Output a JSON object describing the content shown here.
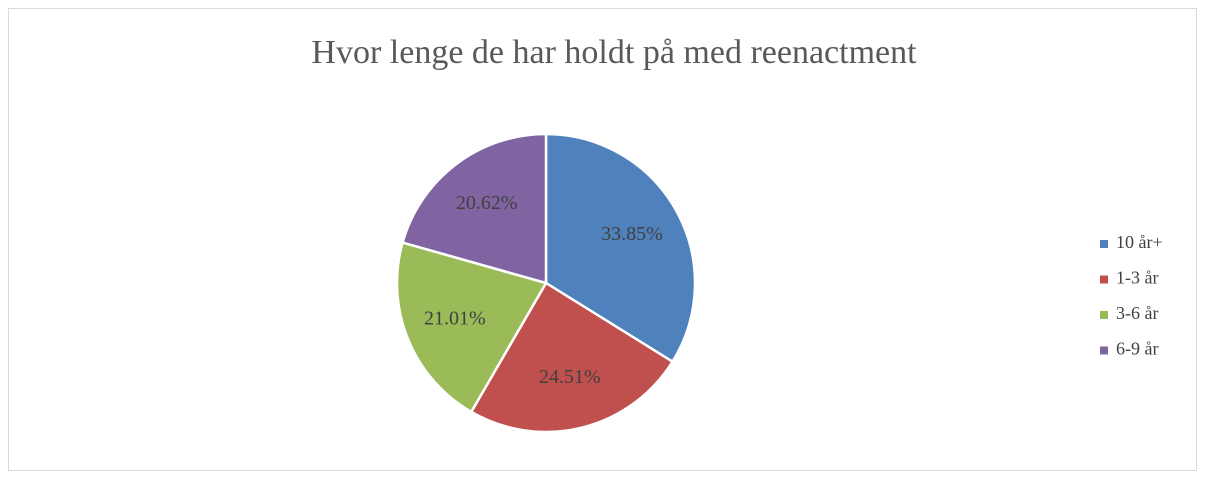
{
  "chart_data": {
    "type": "pie",
    "title": "Hvor lenge de har holdt på med reenactment",
    "categories": [
      "10 år+",
      "1-3 år",
      "3-6 år",
      "6-9 år"
    ],
    "values": [
      33.85,
      24.51,
      21.01,
      20.62
    ],
    "value_labels": [
      "33.85%",
      "24.51%",
      "21.01%",
      "20.62%"
    ],
    "colors": [
      "#4f81bd",
      "#c0504d",
      "#9bbb59",
      "#8064a2"
    ],
    "legend": "right"
  }
}
